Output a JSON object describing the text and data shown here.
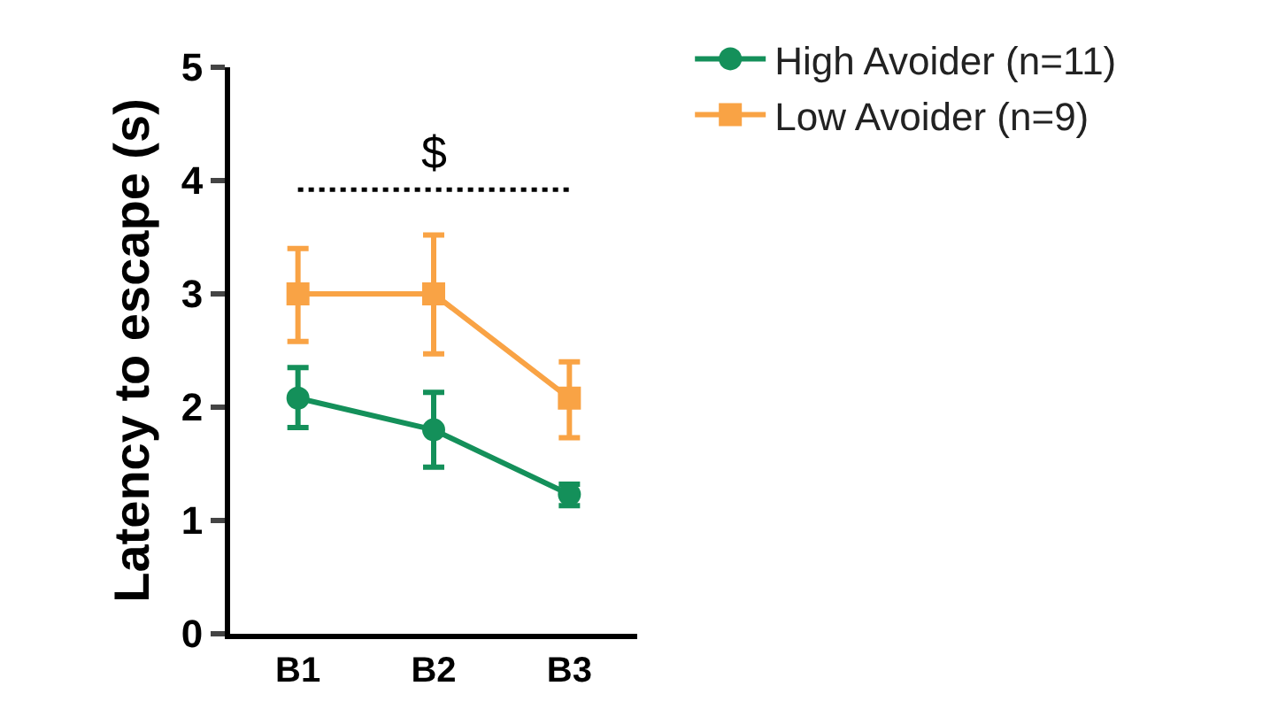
{
  "chart_data": {
    "type": "line",
    "ylabel": "Latency to escape (s)",
    "categories": [
      "B1",
      "B2",
      "B3"
    ],
    "series": [
      {
        "name": "High Avoider (n=11)",
        "color": "#14905a",
        "marker": "circle",
        "values": [
          2.08,
          1.8,
          1.23
        ],
        "errors": [
          [
            1.82,
            2.35
          ],
          [
            1.47,
            2.13
          ],
          [
            1.13,
            1.32
          ]
        ]
      },
      {
        "name": "Low Avoider (n=9)",
        "color": "#f9a345",
        "marker": "square",
        "values": [
          3.0,
          3.0,
          2.08
        ],
        "errors": [
          [
            2.58,
            3.4
          ],
          [
            2.47,
            3.52
          ],
          [
            1.73,
            2.4
          ]
        ]
      }
    ],
    "ylim": [
      0,
      5
    ],
    "yticks": [
      0,
      1,
      2,
      3,
      4,
      5
    ],
    "grid": false,
    "legend": "top right",
    "ref_lines": [
      {
        "axis": "y",
        "value": 3.92,
        "label": "$",
        "color": "#000000",
        "line_style": "dotted"
      }
    ]
  }
}
